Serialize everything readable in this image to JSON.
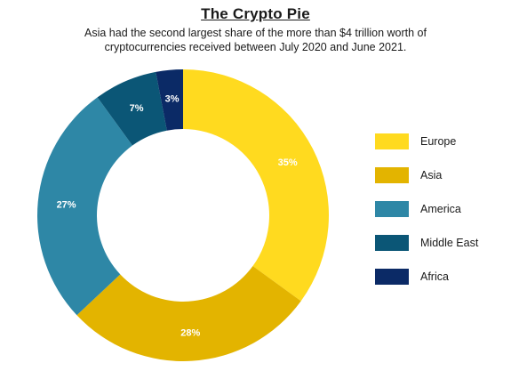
{
  "chart_data": {
    "type": "pie",
    "title": "The Crypto Pie",
    "subtitle": "Asia had the second largest share of the more than $4 trillion worth of cryptocurrencies received between July 2020 and June 2021.",
    "categories": [
      "Europe",
      "Asia",
      "America",
      "Middle East",
      "Africa"
    ],
    "values": [
      35,
      28,
      27,
      7,
      3
    ],
    "data_labels": [
      "35%",
      "28%",
      "27%",
      "7%",
      "3%"
    ],
    "colors": [
      "#ffda1f",
      "#e3b400",
      "#2e87a6",
      "#0b5676",
      "#0b2a66"
    ],
    "donut": true,
    "legend_position": "right"
  }
}
